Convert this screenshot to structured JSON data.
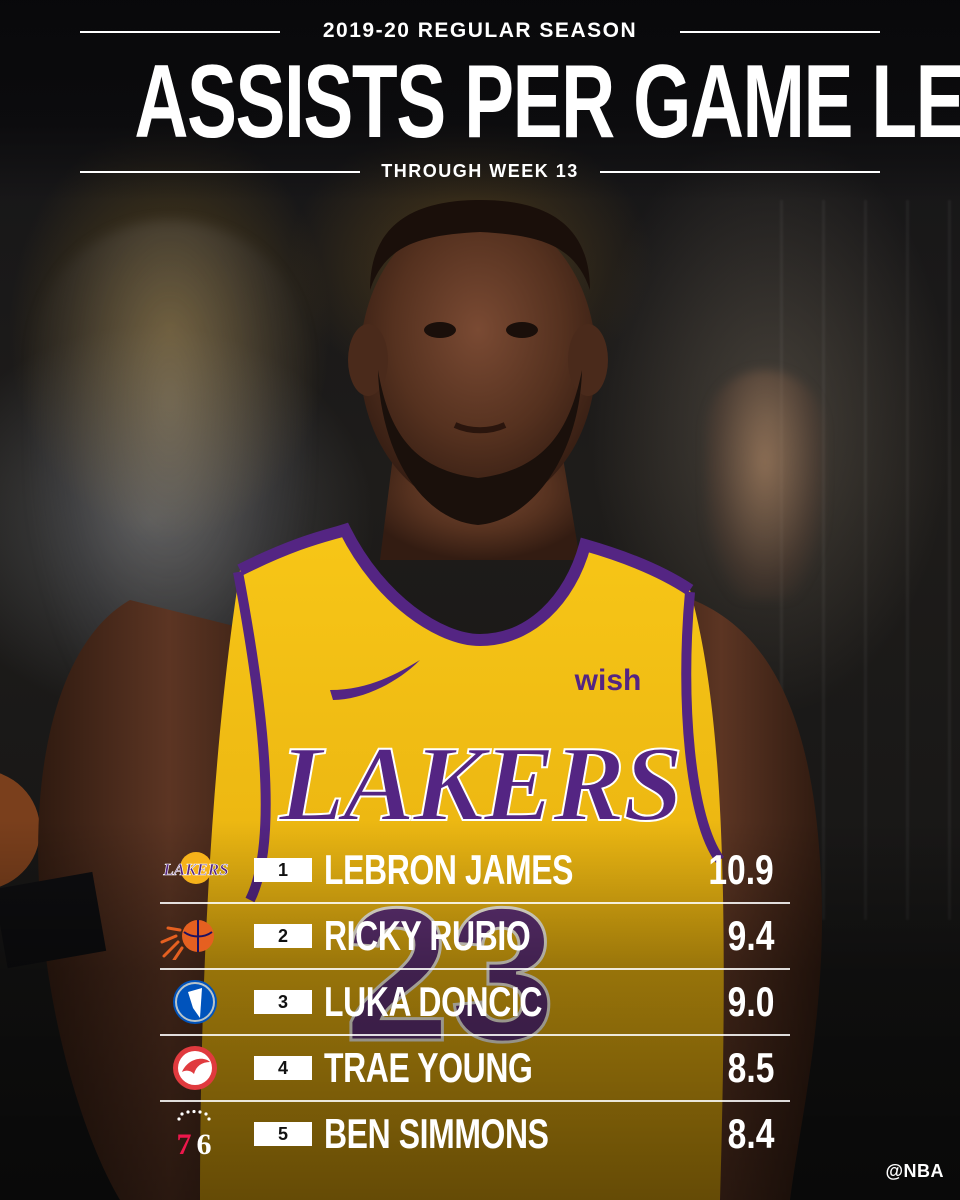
{
  "header": {
    "season": "2019-20 REGULAR SEASON",
    "title": "ASSISTS PER GAME LEADERS",
    "subtitle": "THROUGH WEEK 13"
  },
  "photo": {
    "jersey_brand": "wish",
    "jersey_team": "LAKERS",
    "jersey_number": "23",
    "colors": {
      "jersey": "#f6c214",
      "trim": "#542583"
    }
  },
  "leaders": [
    {
      "rank": "1",
      "name": "LEBRON JAMES",
      "value": "10.9",
      "team_logo": "lakers-logo-icon"
    },
    {
      "rank": "2",
      "name": "RICKY RUBIO",
      "value": "9.4",
      "team_logo": "suns-logo-icon"
    },
    {
      "rank": "3",
      "name": "LUKA DONCIC",
      "value": "9.0",
      "team_logo": "mavericks-logo-icon"
    },
    {
      "rank": "4",
      "name": "TRAE YOUNG",
      "value": "8.5",
      "team_logo": "hawks-logo-icon"
    },
    {
      "rank": "5",
      "name": "BEN SIMMONS",
      "value": "8.4",
      "team_logo": "76ers-logo-icon"
    }
  ],
  "footer": {
    "handle": "@NBA"
  }
}
